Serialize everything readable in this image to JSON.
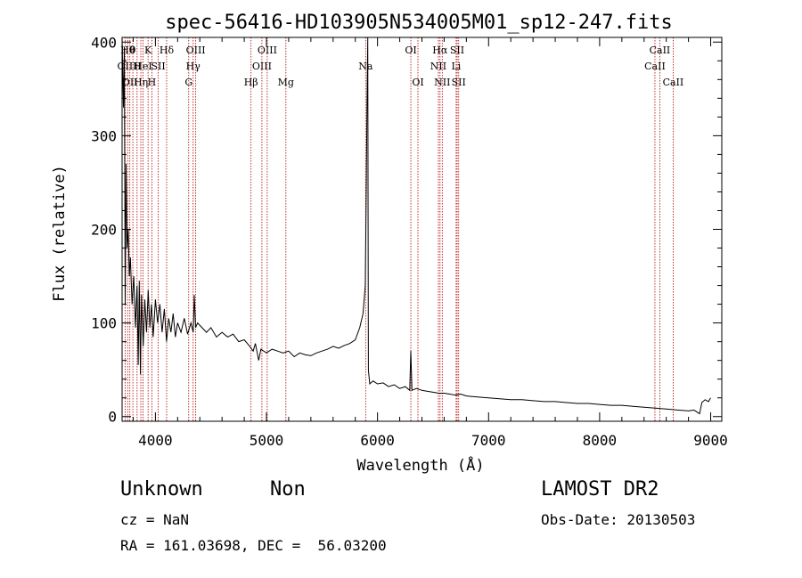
{
  "chart_data": {
    "type": "line",
    "title": "spec-56416-HD103905N534005M01_sp12-247.fits",
    "xlabel": "Wavelength (Å)",
    "ylabel": "Flux (relative)",
    "xlim": [
      3700,
      9100
    ],
    "ylim": [
      -5,
      405
    ],
    "x_ticks": [
      4000,
      5000,
      6000,
      7000,
      8000,
      9000
    ],
    "y_ticks": [
      0,
      100,
      200,
      300,
      400
    ],
    "grid": false,
    "series": [
      {
        "color": "#000000",
        "points": [
          [
            3700,
            410
          ],
          [
            3712,
            330
          ],
          [
            3720,
            395
          ],
          [
            3728,
            120
          ],
          [
            3736,
            270
          ],
          [
            3745,
            180
          ],
          [
            3755,
            200
          ],
          [
            3765,
            150
          ],
          [
            3775,
            170
          ],
          [
            3790,
            120
          ],
          [
            3805,
            150
          ],
          [
            3820,
            95
          ],
          [
            3835,
            140
          ],
          [
            3845,
            55
          ],
          [
            3855,
            145
          ],
          [
            3865,
            45
          ],
          [
            3875,
            130
          ],
          [
            3890,
            75
          ],
          [
            3905,
            125
          ],
          [
            3920,
            90
          ],
          [
            3935,
            135
          ],
          [
            3950,
            95
          ],
          [
            3965,
            120
          ],
          [
            3980,
            85
          ],
          [
            4000,
            125
          ],
          [
            4020,
            100
          ],
          [
            4040,
            120
          ],
          [
            4060,
            90
          ],
          [
            4080,
            115
          ],
          [
            4100,
            80
          ],
          [
            4120,
            105
          ],
          [
            4140,
            90
          ],
          [
            4160,
            110
          ],
          [
            4180,
            85
          ],
          [
            4200,
            100
          ],
          [
            4230,
            90
          ],
          [
            4260,
            105
          ],
          [
            4290,
            88
          ],
          [
            4320,
            100
          ],
          [
            4340,
            90
          ],
          [
            4350,
            130
          ],
          [
            4362,
            95
          ],
          [
            4380,
            100
          ],
          [
            4420,
            95
          ],
          [
            4460,
            90
          ],
          [
            4500,
            95
          ],
          [
            4550,
            85
          ],
          [
            4600,
            90
          ],
          [
            4650,
            85
          ],
          [
            4700,
            88
          ],
          [
            4750,
            80
          ],
          [
            4800,
            82
          ],
          [
            4850,
            75
          ],
          [
            4880,
            70
          ],
          [
            4900,
            78
          ],
          [
            4930,
            60
          ],
          [
            4950,
            72
          ],
          [
            5000,
            68
          ],
          [
            5050,
            72
          ],
          [
            5100,
            70
          ],
          [
            5150,
            68
          ],
          [
            5200,
            70
          ],
          [
            5250,
            64
          ],
          [
            5300,
            68
          ],
          [
            5350,
            66
          ],
          [
            5400,
            65
          ],
          [
            5450,
            68
          ],
          [
            5500,
            70
          ],
          [
            5550,
            72
          ],
          [
            5600,
            75
          ],
          [
            5650,
            73
          ],
          [
            5700,
            76
          ],
          [
            5750,
            78
          ],
          [
            5800,
            82
          ],
          [
            5840,
            95
          ],
          [
            5870,
            110
          ],
          [
            5890,
            140
          ],
          [
            5898,
            230
          ],
          [
            5905,
            330
          ],
          [
            5912,
            410
          ],
          [
            5918,
            50
          ],
          [
            5930,
            35
          ],
          [
            5960,
            38
          ],
          [
            6000,
            35
          ],
          [
            6050,
            36
          ],
          [
            6100,
            32
          ],
          [
            6150,
            34
          ],
          [
            6200,
            30
          ],
          [
            6250,
            32
          ],
          [
            6290,
            28
          ],
          [
            6300,
            70
          ],
          [
            6310,
            28
          ],
          [
            6350,
            30
          ],
          [
            6400,
            28
          ],
          [
            6450,
            27
          ],
          [
            6500,
            26
          ],
          [
            6550,
            25
          ],
          [
            6600,
            25
          ],
          [
            6650,
            24
          ],
          [
            6700,
            23
          ],
          [
            6750,
            24
          ],
          [
            6800,
            22
          ],
          [
            6900,
            21
          ],
          [
            7000,
            20
          ],
          [
            7100,
            19
          ],
          [
            7200,
            18
          ],
          [
            7300,
            18
          ],
          [
            7400,
            17
          ],
          [
            7500,
            16
          ],
          [
            7600,
            16
          ],
          [
            7700,
            15
          ],
          [
            7800,
            14
          ],
          [
            7900,
            14
          ],
          [
            8000,
            13
          ],
          [
            8100,
            12
          ],
          [
            8200,
            12
          ],
          [
            8300,
            11
          ],
          [
            8400,
            10
          ],
          [
            8500,
            9
          ],
          [
            8600,
            8
          ],
          [
            8700,
            7
          ],
          [
            8800,
            6
          ],
          [
            8850,
            7
          ],
          [
            8900,
            3
          ],
          [
            8920,
            15
          ],
          [
            8950,
            18
          ],
          [
            8980,
            16
          ],
          [
            9000,
            20
          ]
        ]
      }
    ],
    "reference_lines": [
      {
        "x": 3727,
        "row": 1,
        "label": "OII"
      },
      {
        "x": 3750,
        "row": 0,
        "label": "Hθ"
      },
      {
        "x": 3770,
        "row": 2,
        "label": "OII"
      },
      {
        "x": 3797,
        "row": 0,
        "label": "θ"
      },
      {
        "x": 3835,
        "row": 1,
        "label": "H"
      },
      {
        "x": 3869,
        "row": 2,
        "label": "Hη"
      },
      {
        "x": 3889,
        "row": 1,
        "label": "HeI"
      },
      {
        "x": 3934,
        "row": 0,
        "label": "K"
      },
      {
        "x": 3968,
        "row": 2,
        "label": "H"
      },
      {
        "x": 4026,
        "row": 1,
        "label": "SII"
      },
      {
        "x": 4101,
        "row": 0,
        "label": "Hδ"
      },
      {
        "x": 4300,
        "row": 2,
        "label": "G"
      },
      {
        "x": 4340,
        "row": 1,
        "label": "Hγ"
      },
      {
        "x": 4363,
        "row": 0,
        "label": "OIII"
      },
      {
        "x": 4861,
        "row": 2,
        "label": "Hβ"
      },
      {
        "x": 4959,
        "row": 1,
        "label": "OIII"
      },
      {
        "x": 5007,
        "row": 0,
        "label": "OIII"
      },
      {
        "x": 5175,
        "row": 2,
        "label": "Mg"
      },
      {
        "x": 5893,
        "row": 1,
        "label": "Na"
      },
      {
        "x": 6300,
        "row": 0,
        "label": "OI"
      },
      {
        "x": 6364,
        "row": 2,
        "label": "OI"
      },
      {
        "x": 6548,
        "row": 1,
        "label": "NII"
      },
      {
        "x": 6563,
        "row": 0,
        "label": "Hα"
      },
      {
        "x": 6583,
        "row": 2,
        "label": "NII"
      },
      {
        "x": 6708,
        "row": 1,
        "label": "Li"
      },
      {
        "x": 6717,
        "row": 0,
        "label": "SII"
      },
      {
        "x": 6731,
        "row": 2,
        "label": "SII"
      },
      {
        "x": 8498,
        "row": 1,
        "label": "CaII"
      },
      {
        "x": 8542,
        "row": 0,
        "label": "CaII"
      },
      {
        "x": 8662,
        "row": 2,
        "label": "CaII"
      }
    ],
    "colors": {
      "spectrum": "#000000",
      "reference_lines": "#b00000",
      "axes": "#000000"
    }
  },
  "info": {
    "object_class": "Unknown",
    "object_subclass": "Non",
    "survey": "LAMOST DR2",
    "redshift": "cz = NaN",
    "obs_date": "Obs-Date: 20130503",
    "coordinates": "RA = 161.03698, DEC =  56.03200"
  }
}
